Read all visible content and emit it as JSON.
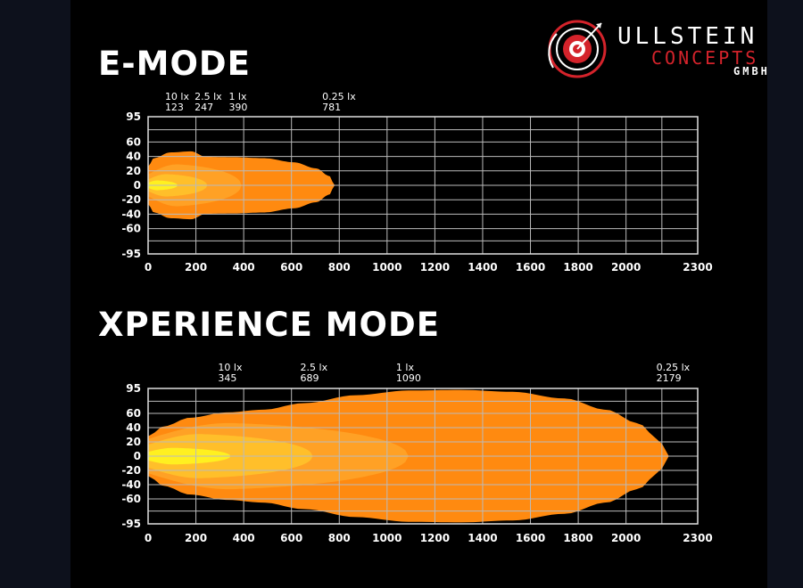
{
  "colors": {
    "background": "#000000",
    "page": "#0d111c",
    "grid": "#bbbbbb",
    "text": "#ffffff",
    "zone_outer": "#ff8a10",
    "zone_mid": "#ffa125",
    "zone_inner": "#ffbf2a",
    "zone_core": "#fff020",
    "brand_red": "#d4232b"
  },
  "logo": {
    "line1": "ULLSTEIN",
    "line2": "CONCEPTS",
    "line3": "GMBH"
  },
  "chart_data": [
    {
      "type": "area",
      "title": "E-MODE",
      "x_ticks": [
        0,
        200,
        400,
        600,
        800,
        1000,
        1200,
        1400,
        1600,
        1800,
        2000,
        2300
      ],
      "y_ticks": [
        95,
        60,
        40,
        20,
        0,
        -20,
        -40,
        -60,
        -95
      ],
      "xlim": [
        0,
        2300
      ],
      "ylim": [
        -95,
        95
      ],
      "grid": true,
      "reach_markers": [
        {
          "lux": "10 lx",
          "distance": 123
        },
        {
          "lux": "2.5 lx",
          "distance": 247
        },
        {
          "lux": "1 lx",
          "distance": 390
        },
        {
          "lux": "0.25 lx",
          "distance": 781
        }
      ],
      "zones": [
        {
          "lux": "0.25 lx",
          "reach": 781,
          "max_width": 47,
          "profile": "emode-outer"
        },
        {
          "lux": "1 lx",
          "reach": 390,
          "max_width": 30,
          "profile": "oval"
        },
        {
          "lux": "2.5 lx",
          "reach": 247,
          "max_width": 16,
          "profile": "oval"
        },
        {
          "lux": "10 lx",
          "reach": 123,
          "max_width": 7,
          "profile": "oval"
        }
      ]
    },
    {
      "type": "area",
      "title": "XPERIENCE MODE",
      "x_ticks": [
        0,
        200,
        400,
        600,
        800,
        1000,
        1200,
        1400,
        1600,
        1800,
        2000,
        2300
      ],
      "y_ticks": [
        95,
        60,
        40,
        20,
        0,
        -20,
        -40,
        -60,
        -95
      ],
      "xlim": [
        0,
        2300
      ],
      "ylim": [
        -95,
        95
      ],
      "grid": true,
      "reach_markers": [
        {
          "lux": "10 lx",
          "distance": 345
        },
        {
          "lux": "2.5 lx",
          "distance": 689
        },
        {
          "lux": "1 lx",
          "distance": 1090
        },
        {
          "lux": "0.25 lx",
          "distance": 2179
        }
      ],
      "zones": [
        {
          "lux": "0.25 lx",
          "reach": 2179,
          "max_width": 93,
          "profile": "xmode-outer"
        },
        {
          "lux": "1 lx",
          "reach": 1090,
          "max_width": 48,
          "profile": "oval"
        },
        {
          "lux": "2.5 lx",
          "reach": 689,
          "max_width": 32,
          "profile": "oval"
        },
        {
          "lux": "10 lx",
          "reach": 345,
          "max_width": 12,
          "profile": "oval"
        }
      ]
    }
  ]
}
